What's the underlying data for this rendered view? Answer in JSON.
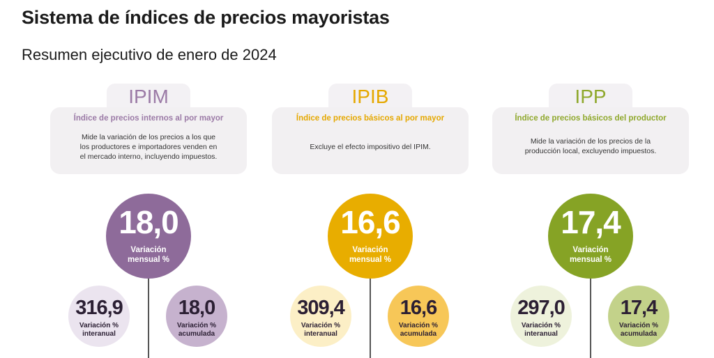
{
  "header": {
    "title": "Sistema de índices de precios mayoristas",
    "subtitle": "Resumen ejecutivo de enero de 2024"
  },
  "indices": [
    {
      "code": "IPIM",
      "heading": "Índice de precios internos al por mayor",
      "description_lines": [
        "Mide la variación de los precios a los que",
        "los productores e importadores venden en",
        "el mercado interno, incluyendo impuestos."
      ],
      "monthly": {
        "value": "18,0",
        "label_1": "Variación",
        "label_2": "mensual %"
      },
      "yearly": {
        "value": "316,9",
        "label_1": "Variación %",
        "label_2": "interanual"
      },
      "cumulative": {
        "value": "18,0",
        "label_1": "Variación %",
        "label_2": "acumulada"
      },
      "colors": {
        "accent": "#9b7aa6",
        "main": "#8e6b9a",
        "yearly_bg": "#ebe4ef",
        "cumulative_bg": "#c6b2ce"
      }
    },
    {
      "code": "IPIB",
      "heading": "Índice de precios básicos al por mayor",
      "description_lines": [
        "Excluye el efecto impositivo del IPIM."
      ],
      "monthly": {
        "value": "16,6",
        "label_1": "Variación",
        "label_2": "mensual %"
      },
      "yearly": {
        "value": "309,4",
        "label_1": "Variación %",
        "label_2": "interanual"
      },
      "cumulative": {
        "value": "16,6",
        "label_1": "Variación %",
        "label_2": "acumulada"
      },
      "colors": {
        "accent": "#e5a800",
        "main": "#e8ad00",
        "yearly_bg": "#fcefc6",
        "cumulative_bg": "#f7c758"
      }
    },
    {
      "code": "IPP",
      "heading": "Índice de precios básicos del productor",
      "description_lines": [
        "Mide la variación de los precios de la",
        "producción local, excluyendo impuestos."
      ],
      "monthly": {
        "value": "17,4",
        "label_1": "Variación",
        "label_2": "mensual %"
      },
      "yearly": {
        "value": "297,0",
        "label_1": "Variación %",
        "label_2": "interanual"
      },
      "cumulative": {
        "value": "17,4",
        "label_1": "Variación %",
        "label_2": "acumulada"
      },
      "colors": {
        "accent": "#8fa82c",
        "main": "#86a325",
        "yearly_bg": "#eef2dc",
        "cumulative_bg": "#c3d28a"
      }
    }
  ]
}
